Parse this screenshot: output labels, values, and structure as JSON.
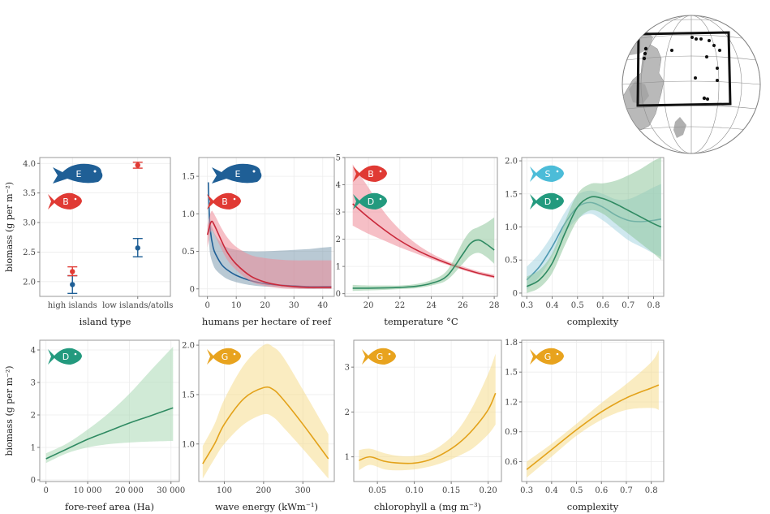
{
  "chart_data": [
    {
      "id": "p1",
      "type": "scatter",
      "xlabel": "island type",
      "ylabel": "biomass (g per m⁻²)",
      "categories": [
        "high islands",
        "low islands/atolls"
      ],
      "ylim": [
        1.75,
        4.1
      ],
      "yticks": [
        "2.0",
        "2.5",
        "3.0",
        "3.5",
        "4.0"
      ],
      "badges": [
        {
          "label": "E",
          "fish": "parrotfish",
          "color": "#1f5f96"
        },
        {
          "label": "B",
          "fish": "fish",
          "color": "#e03a34"
        }
      ],
      "series": [
        {
          "key": "E",
          "color": "#1f5f96",
          "points": [
            {
              "x": 0,
              "y": 1.95,
              "lo": 1.8,
              "hi": 2.1
            },
            {
              "x": 1,
              "y": 2.57,
              "lo": 2.42,
              "hi": 2.73
            }
          ]
        },
        {
          "key": "B",
          "color": "#e03a34",
          "points": [
            {
              "x": 0,
              "y": 2.17,
              "lo": 2.1,
              "hi": 2.25
            },
            {
              "x": 1,
              "y": 3.97,
              "lo": 3.92,
              "hi": 4.02
            }
          ]
        }
      ]
    },
    {
      "id": "p2",
      "type": "line",
      "xlabel": "humans per hectare of reef",
      "xlim": [
        -3,
        44
      ],
      "ylim": [
        -0.1,
        1.75
      ],
      "xticks": [
        0,
        10,
        20,
        30,
        40
      ],
      "yticks": [
        0,
        0.5,
        1.0,
        1.5
      ],
      "yticklabels": [
        "0",
        "0.5",
        "1.0",
        "1.5"
      ],
      "badges": [
        {
          "label": "E",
          "fish": "parrotfish",
          "color": "#1f5f96"
        },
        {
          "label": "B",
          "fish": "fish",
          "color": "#e03a34"
        }
      ],
      "series": [
        {
          "key": "E",
          "color": "#1f5f96",
          "fill": "#7f9cb0",
          "x": [
            0.3,
            0.6,
            1,
            2,
            3,
            5,
            7,
            10,
            15,
            20,
            25,
            30,
            35,
            40,
            43
          ],
          "y": [
            1.42,
            1.05,
            0.78,
            0.55,
            0.45,
            0.32,
            0.25,
            0.18,
            0.11,
            0.07,
            0.05,
            0.04,
            0.03,
            0.03,
            0.03
          ],
          "lo": [
            0.85,
            0.6,
            0.45,
            0.32,
            0.25,
            0.18,
            0.13,
            0.09,
            0.05,
            0.03,
            0.02,
            0.01,
            0.0,
            0.0,
            0.0
          ],
          "hi": [
            1.44,
            1.1,
            0.9,
            0.78,
            0.7,
            0.6,
            0.55,
            0.52,
            0.5,
            0.5,
            0.51,
            0.52,
            0.53,
            0.55,
            0.56
          ]
        },
        {
          "key": "B",
          "color": "#c9283a",
          "fill": "#ee8b98",
          "x": [
            0,
            0.5,
            1,
            1.5,
            2,
            3,
            5,
            7,
            10,
            15,
            20,
            25,
            30,
            35,
            40,
            43
          ],
          "y": [
            0.72,
            0.8,
            0.87,
            0.9,
            0.88,
            0.8,
            0.63,
            0.48,
            0.33,
            0.17,
            0.09,
            0.05,
            0.03,
            0.02,
            0.02,
            0.02
          ],
          "lo": [
            0.55,
            0.65,
            0.75,
            0.78,
            0.76,
            0.68,
            0.52,
            0.38,
            0.25,
            0.1,
            0.04,
            0.01,
            0.0,
            0.0,
            0.0,
            0.0
          ],
          "hi": [
            0.85,
            0.92,
            1.0,
            1.04,
            1.02,
            0.95,
            0.8,
            0.68,
            0.56,
            0.45,
            0.41,
            0.39,
            0.38,
            0.38,
            0.38,
            0.38
          ]
        }
      ]
    },
    {
      "id": "p3",
      "type": "line",
      "xlabel": "temperature °C",
      "xlim": [
        18.5,
        28.2
      ],
      "ylim": [
        -0.1,
        5.0
      ],
      "xticks": [
        20,
        22,
        24,
        26,
        28
      ],
      "yticks": [
        0,
        1,
        2,
        3,
        4,
        5
      ],
      "badges": [
        {
          "label": "B",
          "fish": "fish",
          "color": "#e03a34"
        },
        {
          "label": "D",
          "fish": "fish",
          "color": "#239a7e"
        }
      ],
      "series": [
        {
          "key": "B",
          "color": "#c9283a",
          "fill": "#ee8b98",
          "x": [
            19,
            20,
            21,
            22,
            23,
            24,
            25,
            26,
            27,
            28
          ],
          "y": [
            3.3,
            2.8,
            2.35,
            1.95,
            1.62,
            1.35,
            1.12,
            0.92,
            0.75,
            0.62
          ],
          "lo": [
            2.5,
            2.2,
            1.95,
            1.7,
            1.48,
            1.26,
            1.06,
            0.87,
            0.7,
            0.56
          ],
          "hi": [
            4.75,
            3.9,
            3.0,
            2.35,
            1.85,
            1.48,
            1.2,
            1.0,
            0.82,
            0.7
          ]
        },
        {
          "key": "D",
          "color": "#2f8a62",
          "fill": "#8fc79c",
          "x": [
            19,
            20,
            21,
            22,
            23,
            24,
            25,
            26,
            26.5,
            27,
            27.5,
            28
          ],
          "y": [
            0.2,
            0.2,
            0.21,
            0.23,
            0.27,
            0.38,
            0.65,
            1.45,
            1.85,
            1.97,
            1.82,
            1.6
          ],
          "lo": [
            0.1,
            0.12,
            0.14,
            0.17,
            0.2,
            0.3,
            0.5,
            1.1,
            1.4,
            1.5,
            1.35,
            1.1
          ],
          "hi": [
            0.32,
            0.3,
            0.3,
            0.3,
            0.35,
            0.5,
            0.85,
            1.9,
            2.3,
            2.45,
            2.6,
            2.8
          ]
        }
      ]
    },
    {
      "id": "p4",
      "type": "line",
      "xlabel": "complexity",
      "xlim": [
        0.28,
        0.84
      ],
      "ylim": [
        -0.05,
        2.05
      ],
      "xticks": [
        0.3,
        0.4,
        0.5,
        0.6,
        0.7,
        0.8
      ],
      "yticks": [
        0,
        0.5,
        1.0,
        1.5,
        2.0
      ],
      "xticklabels": [
        "0.3",
        "0.4",
        "0.5",
        "0.6",
        "0.7",
        "0.8"
      ],
      "yticklabels": [
        "0",
        "0.5",
        "1.0",
        "1.5",
        "2.0"
      ],
      "badges": [
        {
          "label": "S",
          "fish": "fish",
          "color": "#4cbcd8"
        },
        {
          "label": "D",
          "fish": "fish",
          "color": "#239a7e"
        }
      ],
      "series": [
        {
          "key": "S",
          "color": "#4f9ab2",
          "fill": "#a8d5e2",
          "x": [
            0.3,
            0.35,
            0.4,
            0.45,
            0.5,
            0.55,
            0.6,
            0.65,
            0.7,
            0.75,
            0.8,
            0.83
          ],
          "y": [
            0.2,
            0.4,
            0.7,
            1.05,
            1.3,
            1.37,
            1.3,
            1.18,
            1.1,
            1.08,
            1.1,
            1.12
          ],
          "lo": [
            0.05,
            0.25,
            0.55,
            0.9,
            1.12,
            1.2,
            1.1,
            0.95,
            0.8,
            0.7,
            0.6,
            0.55
          ],
          "hi": [
            0.4,
            0.6,
            0.88,
            1.22,
            1.48,
            1.55,
            1.5,
            1.42,
            1.42,
            1.5,
            1.6,
            1.65
          ]
        },
        {
          "key": "D",
          "color": "#2f8a62",
          "fill": "#8fc79c",
          "x": [
            0.3,
            0.35,
            0.4,
            0.45,
            0.5,
            0.55,
            0.6,
            0.65,
            0.7,
            0.75,
            0.8,
            0.83
          ],
          "y": [
            0.1,
            0.2,
            0.45,
            0.9,
            1.3,
            1.45,
            1.43,
            1.35,
            1.25,
            1.15,
            1.05,
            1.0
          ],
          "lo": [
            0.0,
            0.08,
            0.3,
            0.72,
            1.1,
            1.25,
            1.2,
            1.05,
            0.9,
            0.75,
            0.6,
            0.5
          ],
          "hi": [
            0.25,
            0.35,
            0.6,
            1.08,
            1.5,
            1.65,
            1.66,
            1.7,
            1.78,
            1.88,
            2.0,
            2.05
          ]
        }
      ]
    },
    {
      "id": "p5",
      "type": "line",
      "xlabel": "fore-reef area (Ha)",
      "ylabel": "biomass (g per m⁻²)",
      "xlim": [
        -1500,
        32000
      ],
      "ylim": [
        -0.05,
        4.3
      ],
      "xticks": [
        0,
        10000,
        20000,
        30000
      ],
      "yticks": [
        0,
        1,
        2,
        3,
        4
      ],
      "xticklabels": [
        "0",
        "10 000",
        "20 000",
        "30 000"
      ],
      "badges": [
        {
          "label": "D",
          "fish": "fish",
          "color": "#239a7e"
        }
      ],
      "series": [
        {
          "key": "D",
          "color": "#2f8a62",
          "fill": "#a9d8b4",
          "x": [
            0,
            5000,
            10000,
            15000,
            20000,
            25000,
            30500
          ],
          "y": [
            0.65,
            0.95,
            1.25,
            1.5,
            1.75,
            1.97,
            2.22
          ],
          "lo": [
            0.52,
            0.82,
            1.0,
            1.1,
            1.15,
            1.18,
            1.2
          ],
          "hi": [
            0.82,
            1.12,
            1.55,
            2.05,
            2.65,
            3.35,
            4.1
          ]
        }
      ]
    },
    {
      "id": "p6",
      "type": "line",
      "xlabel": "wave energy (kWm⁻¹)",
      "xlim": [
        35,
        380
      ],
      "ylim": [
        0.62,
        2.05
      ],
      "xticks": [
        100,
        200,
        300
      ],
      "yticks": [
        1.0,
        1.5,
        2.0
      ],
      "yticklabels": [
        "1.0",
        "1.5",
        "2.0"
      ],
      "badges": [
        {
          "label": "G",
          "fish": "fish",
          "color": "#e8a31e"
        }
      ],
      "series": [
        {
          "key": "G",
          "color": "#e3a21a",
          "fill": "#f6dc8e",
          "x": [
            45,
            75,
            100,
            150,
            200,
            225,
            250,
            300,
            365
          ],
          "y": [
            0.8,
            1.0,
            1.2,
            1.46,
            1.57,
            1.55,
            1.45,
            1.2,
            0.85
          ],
          "lo": [
            0.65,
            0.85,
            1.0,
            1.2,
            1.3,
            1.27,
            1.17,
            0.95,
            0.65
          ],
          "hi": [
            0.98,
            1.2,
            1.45,
            1.8,
            2.0,
            1.98,
            1.88,
            1.55,
            1.1
          ]
        }
      ]
    },
    {
      "id": "p7",
      "type": "line",
      "xlabel": "chlorophyll a (mg m⁻³)",
      "xlim": [
        0.018,
        0.218
      ],
      "ylim": [
        0.45,
        3.6
      ],
      "xticks": [
        0.05,
        0.1,
        0.15,
        0.2
      ],
      "yticks": [
        1,
        2,
        3
      ],
      "xticklabels": [
        "0.05",
        "0.10",
        "0.15",
        "0.20"
      ],
      "badges": [
        {
          "label": "G",
          "fish": "fish",
          "color": "#e8a31e"
        }
      ],
      "series": [
        {
          "key": "G",
          "color": "#e3a21a",
          "fill": "#f6dc8e",
          "x": [
            0.025,
            0.04,
            0.06,
            0.08,
            0.1,
            0.12,
            0.14,
            0.16,
            0.18,
            0.2,
            0.21
          ],
          "y": [
            0.92,
            1.0,
            0.9,
            0.86,
            0.86,
            0.93,
            1.08,
            1.3,
            1.62,
            2.05,
            2.42
          ],
          "lo": [
            0.7,
            0.82,
            0.72,
            0.7,
            0.72,
            0.78,
            0.88,
            1.02,
            1.2,
            1.5,
            1.72
          ],
          "hi": [
            1.15,
            1.18,
            1.08,
            1.02,
            1.02,
            1.1,
            1.3,
            1.62,
            2.15,
            2.85,
            3.3
          ]
        }
      ]
    },
    {
      "id": "p8",
      "type": "line",
      "xlabel": "complexity",
      "xlim": [
        0.28,
        0.85
      ],
      "ylim": [
        0.4,
        1.82
      ],
      "xticks": [
        0.3,
        0.4,
        0.5,
        0.6,
        0.7,
        0.8
      ],
      "yticks": [
        0.6,
        0.9,
        1.2,
        1.5,
        1.8
      ],
      "xticklabels": [
        "0.3",
        "0.4",
        "0.5",
        "0.6",
        "0.7",
        "0.8"
      ],
      "yticklabels": [
        "0.6",
        "0.9",
        "1.2",
        "1.5",
        "1.8"
      ],
      "badges": [
        {
          "label": "G",
          "fish": "fish",
          "color": "#e8a31e"
        }
      ],
      "series": [
        {
          "key": "G",
          "color": "#e3a21a",
          "fill": "#f6dc8e",
          "x": [
            0.3,
            0.4,
            0.5,
            0.6,
            0.7,
            0.8,
            0.83
          ],
          "y": [
            0.52,
            0.72,
            0.92,
            1.1,
            1.24,
            1.34,
            1.37
          ],
          "lo": [
            0.44,
            0.65,
            0.86,
            1.02,
            1.12,
            1.14,
            1.12
          ],
          "hi": [
            0.6,
            0.78,
            0.98,
            1.19,
            1.38,
            1.6,
            1.72
          ]
        }
      ]
    }
  ]
}
